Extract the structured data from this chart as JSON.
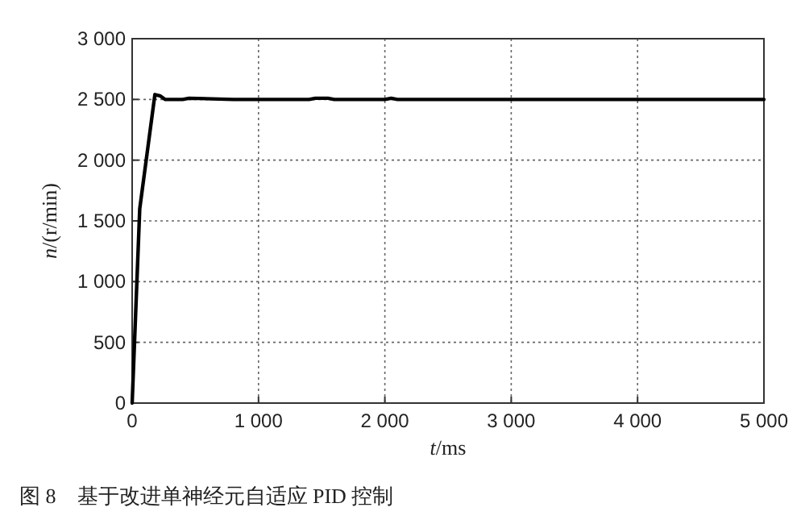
{
  "chart_data": {
    "type": "line",
    "xlabel": "t/ms",
    "ylabel": "n/(r/min)",
    "annotations": [
      "图 8　基于改进单神经元自适应 PID 控制"
    ],
    "x": [
      0,
      60,
      180,
      220,
      260,
      400,
      450,
      800,
      1400,
      1450,
      1550,
      1600,
      2000,
      2050,
      2100,
      3000,
      4000,
      5000
    ],
    "series": [
      {
        "color": "#000000",
        "values": [
          0,
          1600,
          2540,
          2530,
          2500,
          2500,
          2510,
          2500,
          2500,
          2510,
          2510,
          2500,
          2500,
          2510,
          2500,
          2500,
          2500,
          2500
        ]
      }
    ],
    "xlim": [
      0,
      5000
    ],
    "ylim": [
      0,
      3000
    ],
    "xticks": [
      0,
      {
        "value": 1000,
        "label": "1 000"
      },
      {
        "value": 2000,
        "label": "2 000"
      },
      {
        "value": 3000,
        "label": "3 000"
      },
      {
        "value": 4000,
        "label": "4 000"
      },
      {
        "value": 5000,
        "label": "5 000"
      }
    ],
    "yticks": [
      0,
      500,
      {
        "value": 1000,
        "label": "1 000"
      },
      {
        "value": 1500,
        "label": "1 500"
      },
      {
        "value": 2000,
        "label": "2 000"
      },
      {
        "value": 2500,
        "label": "2 500"
      },
      {
        "value": 3000,
        "label": "3 000"
      }
    ],
    "grid": true,
    "line_style": "solid",
    "marker": "none"
  }
}
